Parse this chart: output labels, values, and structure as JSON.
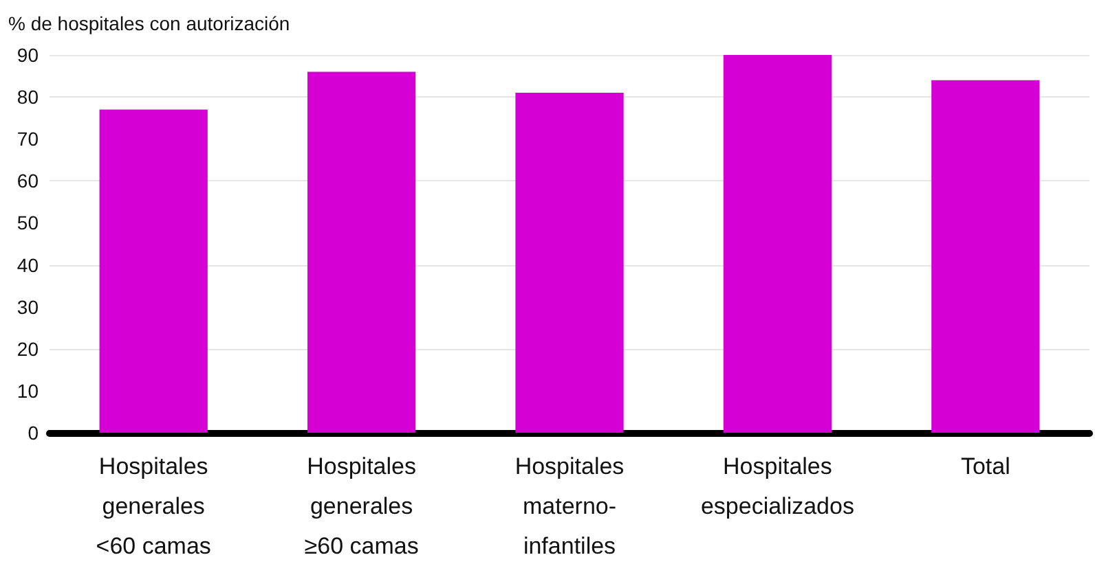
{
  "chart_data": {
    "type": "bar",
    "ylabel": "% de hospitales con autorización",
    "categories": [
      "Hospitales\ngenerales\n<60 camas",
      "Hospitales\ngenerales\n≥60 camas",
      "Hospitales\nmaterno-\ninfantiles",
      "Hospitales\nespecializados",
      "Total"
    ],
    "values": [
      77,
      86,
      81,
      90,
      84
    ],
    "color": "#d400d4",
    "ylim": [
      0,
      90
    ],
    "yticks": [
      0,
      10,
      20,
      30,
      40,
      50,
      60,
      70,
      80,
      90
    ],
    "grid": "y"
  }
}
